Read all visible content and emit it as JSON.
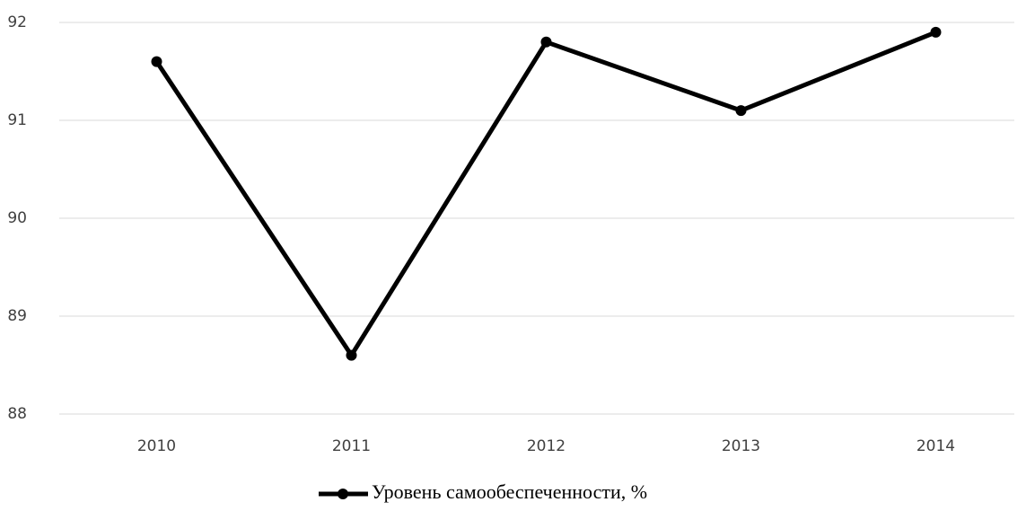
{
  "chart_data": {
    "type": "line",
    "categories": [
      "2010",
      "2011",
      "2012",
      "2013",
      "2014"
    ],
    "series": [
      {
        "name": "Уровень самообеспеченности, %",
        "color": "#000000",
        "values": [
          91.6,
          88.6,
          91.8,
          91.1,
          91.9
        ]
      }
    ],
    "ylim": [
      88,
      92
    ],
    "yticks": [
      88,
      89,
      90,
      91,
      92
    ],
    "grid": true,
    "legend": "bottom"
  }
}
